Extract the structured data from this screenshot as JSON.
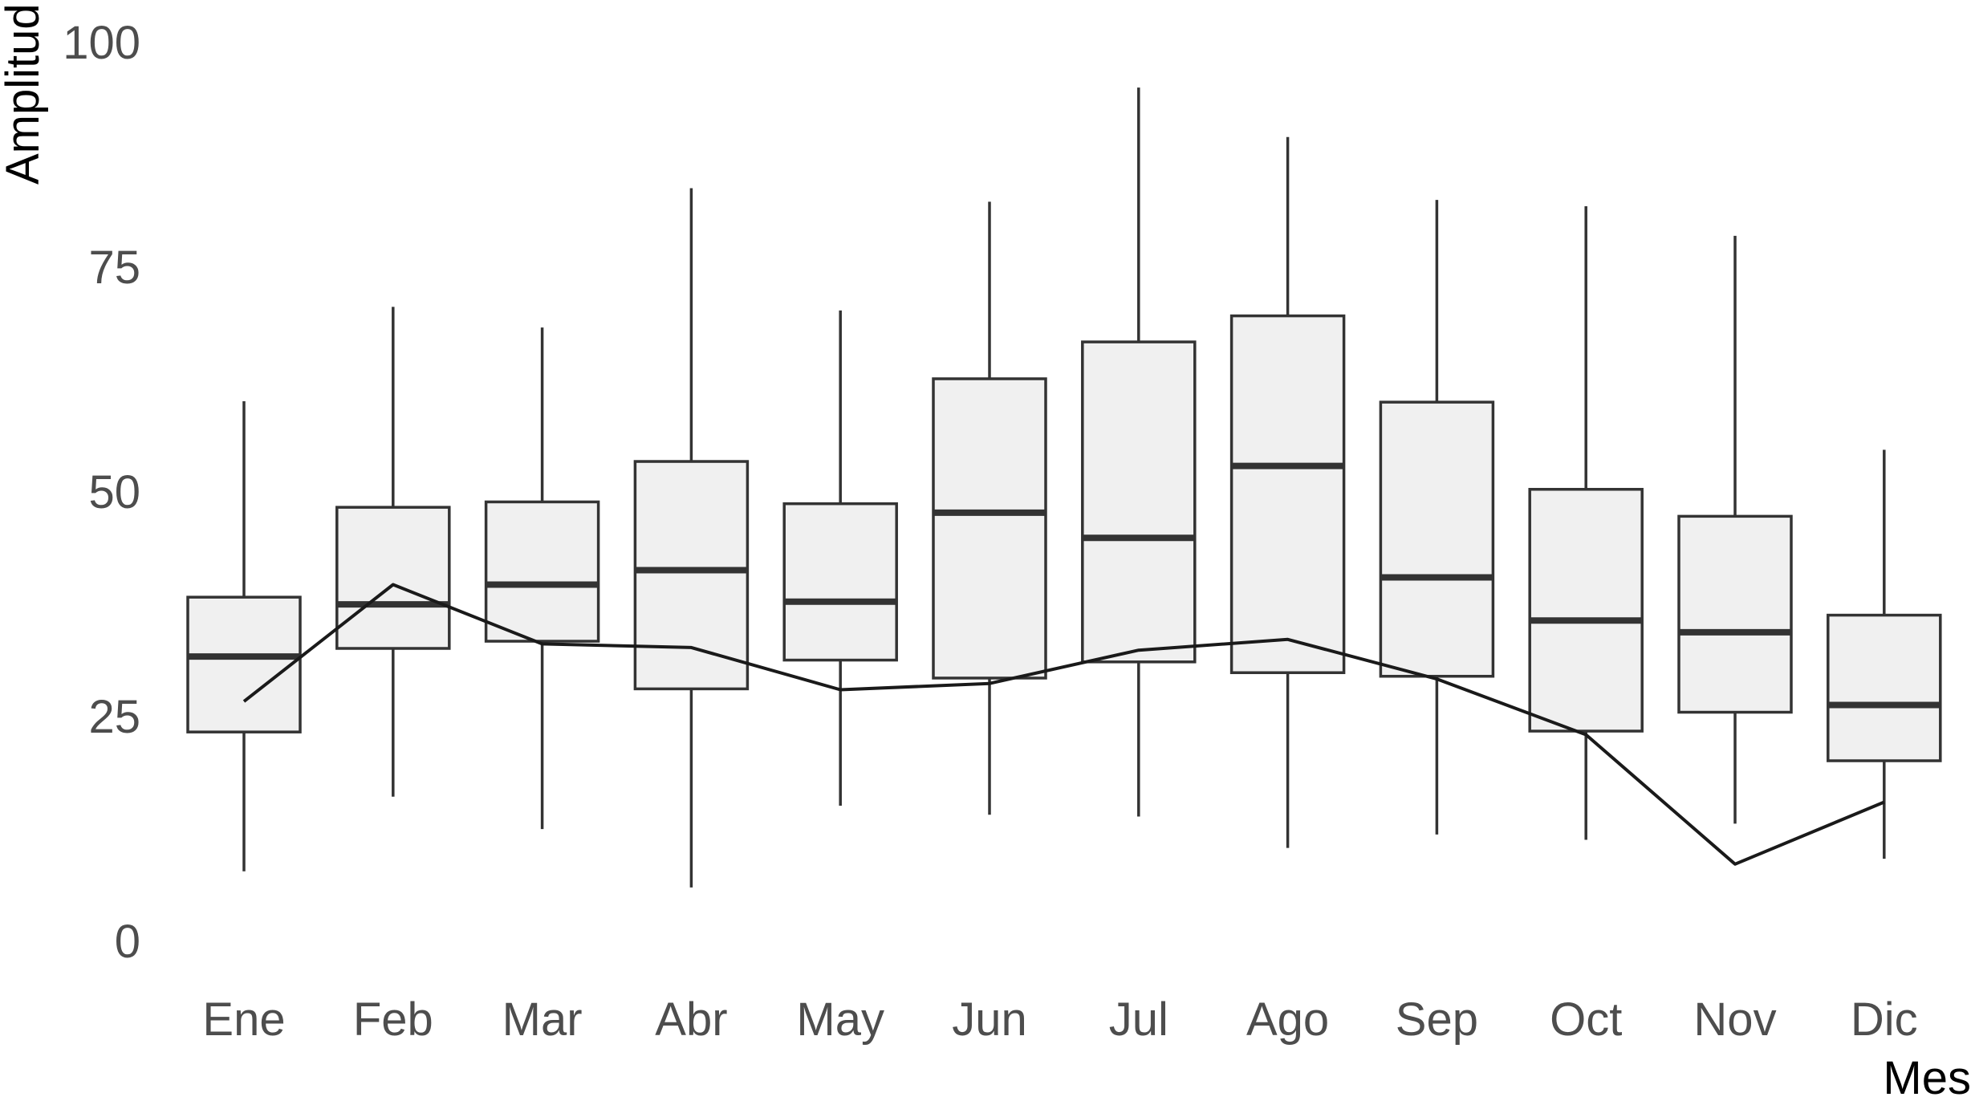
{
  "chart_data": {
    "type": "boxplot",
    "xlabel": "Mes",
    "ylabel": "Amplitud",
    "ylim": [
      0,
      100
    ],
    "yticks": [
      0,
      25,
      50,
      75,
      100
    ],
    "grid": false,
    "legend": "none",
    "colors": {
      "box_fill": "#f0f0f0",
      "box_stroke": "#333333",
      "median_stroke": "#333333",
      "line": "#1a1a1a",
      "tick_label": "#4d4d4d",
      "axis_title": "#000000"
    },
    "categories": [
      "Ene",
      "Feb",
      "Mar",
      "Abr",
      "May",
      "Jun",
      "Jul",
      "Ago",
      "Sep",
      "Oct",
      "Nov",
      "Dic"
    ],
    "boxes": [
      {
        "category": "Ene",
        "min": 7.7,
        "q1": 23.2,
        "median": 31.6,
        "q3": 38.2,
        "max": 60.0
      },
      {
        "category": "Feb",
        "min": 16.0,
        "q1": 32.5,
        "median": 37.4,
        "q3": 48.2,
        "max": 70.5
      },
      {
        "category": "Mar",
        "min": 12.4,
        "q1": 33.3,
        "median": 39.6,
        "q3": 48.8,
        "max": 68.2
      },
      {
        "category": "Abr",
        "min": 5.9,
        "q1": 28.0,
        "median": 41.2,
        "q3": 53.3,
        "max": 83.7
      },
      {
        "category": "May",
        "min": 15.0,
        "q1": 31.2,
        "median": 37.7,
        "q3": 48.6,
        "max": 70.1
      },
      {
        "category": "Jun",
        "min": 14.0,
        "q1": 29.2,
        "median": 47.6,
        "q3": 62.5,
        "max": 82.2
      },
      {
        "category": "Jul",
        "min": 13.8,
        "q1": 31.0,
        "median": 44.8,
        "q3": 66.6,
        "max": 94.9
      },
      {
        "category": "Ago",
        "min": 10.3,
        "q1": 29.8,
        "median": 52.8,
        "q3": 69.5,
        "max": 89.4
      },
      {
        "category": "Sep",
        "min": 11.8,
        "q1": 29.4,
        "median": 40.4,
        "q3": 59.9,
        "max": 82.4
      },
      {
        "category": "Oct",
        "min": 11.2,
        "q1": 23.3,
        "median": 35.6,
        "q3": 50.2,
        "max": 81.7
      },
      {
        "category": "Nov",
        "min": 13.0,
        "q1": 25.4,
        "median": 34.3,
        "q3": 47.2,
        "max": 78.4
      },
      {
        "category": "Dic",
        "min": 9.1,
        "q1": 20.0,
        "median": 26.2,
        "q3": 36.2,
        "max": 54.6
      }
    ],
    "line_series": {
      "values": [
        26.6,
        39.6,
        33.0,
        32.6,
        27.9,
        28.6,
        32.3,
        33.5,
        29.1,
        22.9,
        8.5,
        15.4
      ]
    }
  }
}
